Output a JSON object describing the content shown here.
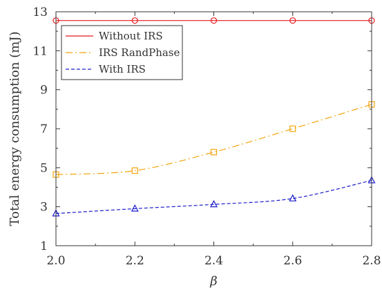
{
  "chart_data": {
    "type": "line",
    "title": "",
    "xlabel": "β",
    "ylabel": "Total energy consumption (mJ)",
    "x": [
      2.0,
      2.2,
      2.4,
      2.6,
      2.8
    ],
    "xlim": [
      2.0,
      2.8
    ],
    "ylim": [
      1,
      13
    ],
    "xticks": [
      "2.0",
      "2.2",
      "2.4",
      "2.6",
      "2.8"
    ],
    "yticks": [
      "1",
      "3",
      "5",
      "7",
      "9",
      "11",
      "13"
    ],
    "grid": false,
    "legend_position": "top-left",
    "series": [
      {
        "name": "Without IRS",
        "values": [
          12.55,
          12.55,
          12.55,
          12.55,
          12.55
        ],
        "color": "#e8191c",
        "line": "solid",
        "marker": "circle"
      },
      {
        "name": "IRS RandPhase",
        "values": [
          4.65,
          4.85,
          5.8,
          7.0,
          8.25
        ],
        "color": "#f2a40c",
        "line": "dashdot",
        "marker": "square"
      },
      {
        "name": "With IRS",
        "values": [
          2.65,
          2.9,
          3.12,
          3.42,
          4.35
        ],
        "color": "#1c1ccc",
        "line": "dashed",
        "marker": "triangle"
      }
    ]
  }
}
